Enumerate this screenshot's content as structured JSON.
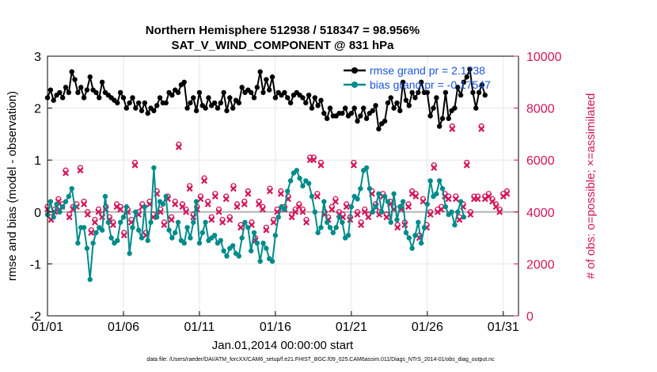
{
  "colors": {
    "rmse": "#000000",
    "bias": "#008b8b",
    "obs": "#d4145a",
    "legend_text": "#1a56db",
    "grid": "#e6e6e6",
    "zero_line": "#b3b3b3"
  },
  "chart_data": {
    "type": "line",
    "title_line1": "Northern Hemisphere 512938 / 518347 = 98.956%",
    "title_line2": "SAT_V_WIND_COMPONENT @ 831 hPa",
    "xlabel": "Jan.01,2014 00:00:00 start",
    "ylabel_left": "rmse and bias (model - observation)",
    "ylabel_right": "# of obs: o=possible; ×=assimilated",
    "x_ticks": [
      "01/01",
      "01/06",
      "01/11",
      "01/16",
      "01/21",
      "01/26",
      "01/31"
    ],
    "x_tick_days": [
      1,
      6,
      11,
      16,
      21,
      26,
      31
    ],
    "xlim": [
      1,
      32
    ],
    "ylim_left": [
      -2,
      3
    ],
    "left_ticks": [
      "-2",
      "-1",
      "0",
      "1",
      "2",
      "3"
    ],
    "ylim_right": [
      0,
      10000
    ],
    "right_ticks": [
      "0",
      "2000",
      "4000",
      "6000",
      "8000",
      "10000"
    ],
    "legend": [
      {
        "name": "rmse grand pr = 2.1738"
      },
      {
        "name": "bias grand pr = -0.17547"
      }
    ],
    "footer": "data file: /Users/raeder/DAI/ATM_forcXX/CAM6_setup/f.e21.FHIST_BGC.f09_025.CAM6assim.011/Diags_NTrS_2014-01/obs_diag_output.nc",
    "series": [
      {
        "name": "rmse",
        "values": [
          2.2,
          2.35,
          2.15,
          2.25,
          2.3,
          2.2,
          2.4,
          2.3,
          2.7,
          2.55,
          2.3,
          2.4,
          2.2,
          2.35,
          2.6,
          2.35,
          2.3,
          2.2,
          2.5,
          2.3,
          2.25,
          2.2,
          2.15,
          2.1,
          2.3,
          2.2,
          2.0,
          2.1,
          2.2,
          2.0,
          2.1,
          1.95,
          2.1,
          1.9,
          2.0,
          1.95,
          2.05,
          2.2,
          2.1,
          2.1,
          2.3,
          2.25,
          2.35,
          2.3,
          2.45,
          2.5,
          2.0,
          2.1,
          2.2,
          1.95,
          2.3,
          2.05,
          2.0,
          2.2,
          2.05,
          2.1,
          2.0,
          2.1,
          2.3,
          1.95,
          2.2,
          2.0,
          2.15,
          2.1,
          2.4,
          2.3,
          2.35,
          2.3,
          2.2,
          2.4,
          2.7,
          2.3,
          2.55,
          2.35,
          2.6,
          2.2,
          2.3,
          2.25,
          2.3,
          2.2,
          2.1,
          2.25,
          2.3,
          2.25,
          2.2,
          2.1,
          2.25,
          2.0,
          2.2,
          2.05,
          2.15,
          1.9,
          1.8,
          2.0,
          1.85,
          1.85,
          1.9,
          1.9,
          2.0,
          1.85,
          1.9,
          2.0,
          1.75,
          1.85,
          2.0,
          1.8,
          1.9,
          1.95,
          2.05,
          1.6,
          1.7,
          1.75,
          2.1,
          2.2,
          2.0,
          2.1,
          1.95,
          2.5,
          2.15,
          2.05,
          2.3,
          2.2,
          2.3,
          2.5,
          2.3,
          2.3,
          1.85,
          2.0,
          2.2,
          1.65,
          1.8,
          2.3,
          1.8,
          1.95,
          2.0,
          2.4,
          2.25,
          2.5,
          2.6,
          2.75,
          2.3,
          2.0,
          2.3,
          2.45,
          2.25
        ],
        "x_start": 1.0,
        "x_step": 0.2
      },
      {
        "name": "bias",
        "values": [
          -0.05,
          0.2,
          -0.1,
          0.15,
          0.0,
          0.1,
          0.2,
          0.3,
          0.45,
          0.1,
          -0.6,
          -0.3,
          -0.3,
          -0.7,
          -1.3,
          -0.6,
          -0.4,
          -0.3,
          -0.35,
          0.3,
          -0.2,
          -0.5,
          -0.6,
          -0.55,
          -0.2,
          -0.1,
          0.1,
          -0.8,
          -0.3,
          0.0,
          -0.35,
          -0.5,
          0.1,
          -0.55,
          -0.2,
          0.85,
          -0.1,
          0.2,
          0.15,
          0.3,
          -0.35,
          -0.5,
          -0.4,
          -0.2,
          -0.55,
          -0.6,
          -0.3,
          -0.5,
          -0.2,
          0.2,
          -0.6,
          -0.4,
          -0.2,
          -0.55,
          -0.5,
          -0.45,
          -0.6,
          -0.55,
          -0.75,
          -0.85,
          -0.7,
          -0.65,
          -0.8,
          -0.85,
          -0.5,
          -0.2,
          -0.3,
          -0.75,
          -0.4,
          -0.6,
          -0.95,
          -0.6,
          -0.7,
          -0.9,
          -0.95,
          -0.45,
          -0.1,
          0.1,
          0.05,
          0.4,
          0.6,
          0.75,
          0.8,
          0.65,
          0.5,
          0.6,
          0.55,
          0.3,
          0.0,
          -0.4,
          -0.3,
          0.2,
          -0.2,
          -0.3,
          -0.4,
          -0.3,
          -0.1,
          -0.2,
          -0.5,
          -0.45,
          0.1,
          0.3,
          0.25,
          0.45,
          0.8,
          0.85,
          0.45,
          0.0,
          0.1,
          0.35,
          0.0,
          0.3,
          0.2,
          -0.2,
          0.35,
          -0.15,
          0.1,
          0.2,
          -0.4,
          -0.5,
          -0.7,
          -0.45,
          -0.2,
          -0.6,
          -0.3,
          0.15,
          0.6,
          0.3,
          0.35,
          0.6,
          0.45,
          0.1,
          -0.05,
          0.0,
          -0.25,
          0.0,
          0.2,
          -0.1
        ],
        "x_start": 1.0,
        "x_step": 0.2
      },
      {
        "name": "obs_possible",
        "values": [
          4200,
          3800,
          4100,
          4500,
          4300,
          5600,
          3900,
          4200,
          4300,
          5700,
          4400,
          4000,
          3300,
          3700,
          4100,
          3900,
          4200,
          3800,
          3600,
          4300,
          4200,
          3200,
          4100,
          3700,
          5900,
          4000,
          4300,
          3200,
          4400,
          3900,
          4800,
          4100,
          3600,
          4600,
          3800,
          4400,
          6600,
          4300,
          4100,
          5000,
          3900,
          4200,
          4600,
          5300,
          4400,
          3800,
          4700,
          4100,
          3700,
          4600,
          3800,
          5000,
          4300,
          3500,
          4400,
          4800,
          3600,
          3000,
          4400,
          4200,
          3400,
          4900,
          3700,
          4100,
          4800,
          4200,
          4600,
          3900,
          4100,
          4300,
          4100,
          3700,
          6100,
          6100,
          4700,
          5900,
          4000,
          3800,
          4200,
          4500,
          4000,
          3900,
          4300,
          3800,
          5900,
          4000,
          3600,
          4100,
          3900,
          4800,
          4300,
          4000,
          4700,
          3900,
          4400,
          4200,
          3500,
          4200,
          3600,
          4300,
          4800,
          4700,
          3100,
          4500,
          3500,
          4000,
          5800,
          4100,
          4200,
          4700,
          4600,
          7300,
          4600,
          3800,
          4300,
          5900,
          4000,
          4600,
          4600,
          7300,
          4600,
          4700,
          4500,
          4300,
          4100,
          4700,
          4800
        ],
        "x_start": 1.0,
        "x_step": 0.24
      },
      {
        "name": "obs_assimilated",
        "values": [
          4100,
          3700,
          4000,
          4400,
          4200,
          5500,
          3800,
          4100,
          4200,
          5600,
          4300,
          3900,
          3200,
          3600,
          4000,
          3800,
          4100,
          3700,
          3500,
          4200,
          4100,
          3100,
          4000,
          3600,
          5800,
          3900,
          4200,
          3100,
          4300,
          3800,
          4700,
          4000,
          3500,
          4500,
          3700,
          4300,
          6500,
          4200,
          4000,
          4900,
          3800,
          4100,
          4500,
          5200,
          4300,
          3700,
          4600,
          4000,
          3600,
          4500,
          3700,
          4900,
          4200,
          3400,
          4300,
          4700,
          3500,
          2900,
          4300,
          4100,
          3300,
          4800,
          3600,
          4000,
          4700,
          4100,
          4500,
          3800,
          4000,
          4200,
          4000,
          3600,
          6000,
          6000,
          4600,
          5800,
          3900,
          3700,
          4100,
          4400,
          3900,
          3800,
          4200,
          3700,
          5800,
          3900,
          3500,
          4000,
          3800,
          4700,
          4200,
          3900,
          4600,
          3800,
          4300,
          4100,
          3400,
          4100,
          3500,
          4200,
          4700,
          4600,
          3000,
          4400,
          3400,
          3900,
          5700,
          4000,
          4100,
          4600,
          4500,
          7200,
          4500,
          3700,
          4200,
          5800,
          3900,
          4500,
          4500,
          7200,
          4500,
          4600,
          4400,
          4200,
          4000,
          4600,
          4700
        ],
        "x_start": 1.0,
        "x_step": 0.24
      }
    ]
  }
}
